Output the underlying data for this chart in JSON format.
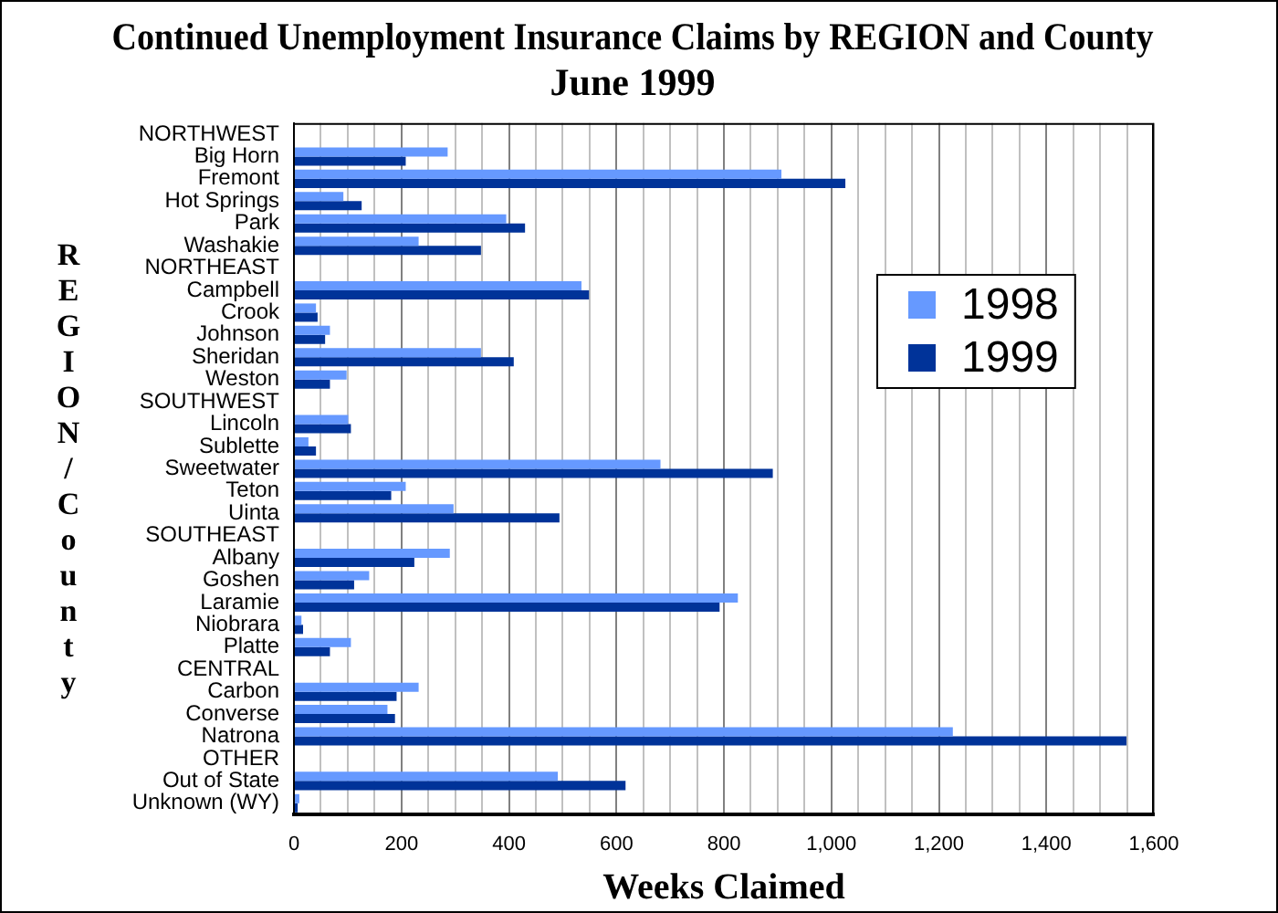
{
  "chart_data": {
    "type": "bar",
    "orientation": "horizontal",
    "title": "Continued Unemployment Insurance Claims by REGION and County",
    "subtitle": "June 1999",
    "xlabel": "Weeks Claimed",
    "ylabel": "REGION/County",
    "categories": [
      "NORTHWEST",
      "Big Horn",
      "Fremont",
      "Hot Springs",
      "Park",
      "Washakie",
      "NORTHEAST",
      "Campbell",
      "Crook",
      "Johnson",
      "Sheridan",
      "Weston",
      "SOUTHWEST",
      "Lincoln",
      "Sublette",
      "Sweetwater",
      "Teton",
      "Uinta",
      "SOUTHEAST",
      "Albany",
      "Goshen",
      "Laramie",
      "Niobrara",
      "Platte",
      "CENTRAL",
      "Carbon",
      "Converse",
      "Natrona",
      "OTHER",
      "Out of State",
      "Unknown (WY)"
    ],
    "series": [
      {
        "name": "1998",
        "color": "#6699ff",
        "values": [
          null,
          286,
          907,
          92,
          395,
          232,
          null,
          535,
          41,
          67,
          348,
          98,
          null,
          101,
          27,
          682,
          208,
          297,
          null,
          290,
          140,
          826,
          14,
          106,
          null,
          232,
          174,
          1226,
          null,
          491,
          10
        ]
      },
      {
        "name": "1999",
        "color": "#003399",
        "values": [
          null,
          208,
          1026,
          126,
          430,
          348,
          null,
          549,
          44,
          58,
          409,
          67,
          null,
          106,
          41,
          891,
          181,
          494,
          null,
          224,
          112,
          792,
          17,
          67,
          null,
          191,
          188,
          1549,
          null,
          617,
          7
        ]
      }
    ],
    "xlim": [
      0,
      1600
    ],
    "xticks": [
      0,
      {
        "value": 50,
        "label": null
      },
      {
        "value": 100,
        "label": null
      },
      {
        "value": 150,
        "label": null
      },
      200,
      {
        "value": 250,
        "label": null
      },
      {
        "value": 300,
        "label": null
      },
      {
        "value": 350,
        "label": null
      },
      400,
      {
        "value": 450,
        "label": null
      },
      {
        "value": 500,
        "label": null
      },
      {
        "value": 550,
        "label": null
      },
      600,
      {
        "value": 650,
        "label": null
      },
      {
        "value": 700,
        "label": null
      },
      {
        "value": 750,
        "label": null
      },
      800,
      {
        "value": 850,
        "label": null
      },
      {
        "value": 900,
        "label": null
      },
      {
        "value": 950,
        "label": null
      },
      {
        "value": 1000,
        "label": "1,000"
      },
      {
        "value": 1050,
        "label": null
      },
      {
        "value": 1100,
        "label": null
      },
      {
        "value": 1150,
        "label": null
      },
      {
        "value": 1200,
        "label": "1,200"
      },
      {
        "value": 1250,
        "label": null
      },
      {
        "value": 1300,
        "label": null
      },
      {
        "value": 1350,
        "label": null
      },
      {
        "value": 1400,
        "label": "1,400"
      },
      {
        "value": 1450,
        "label": null
      },
      {
        "value": 1500,
        "label": null
      },
      {
        "value": 1550,
        "label": null
      },
      {
        "value": 1600,
        "label": "1,600"
      }
    ],
    "grid": "x",
    "legend": "right"
  }
}
